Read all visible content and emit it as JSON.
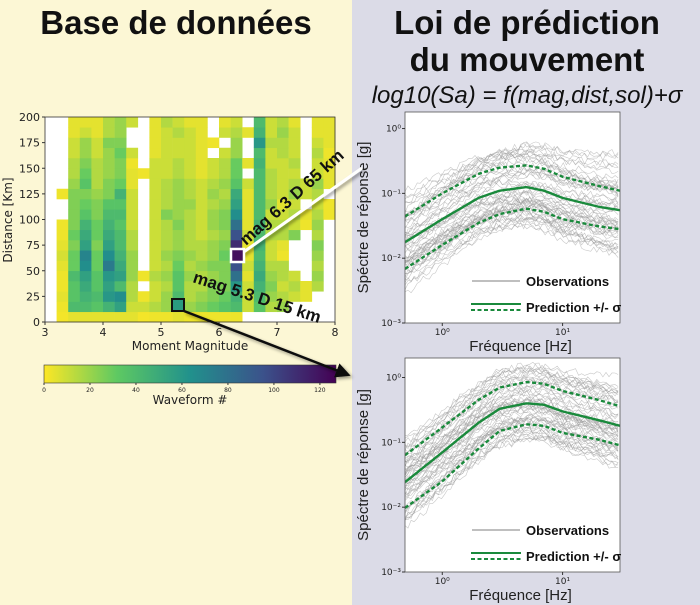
{
  "left_title": "Base de données",
  "right_title_line1": "Loi de prédiction",
  "right_title_line2": "du mouvement",
  "formula": "log10(Sa) = f(mag,dist,sol)+σ",
  "annotations": {
    "upper": "mag 6.3 D 65 km",
    "lower": "mag 5.3 D 15 km"
  },
  "colors": {
    "left_background": "#fcf7d5",
    "right_background": "#dbdbe7",
    "prediction": "#1a8a3c",
    "observations": "#9a9a9a",
    "upper_marker": "#ffffff",
    "lower_marker": "#111111"
  },
  "chart_data": [
    {
      "type": "heatmap",
      "xlabel": "Moment Magnitude",
      "ylabel": "Distance [Km]",
      "xlim": [
        3,
        8
      ],
      "ylim": [
        0,
        200
      ],
      "x_bin_width": 0.2,
      "y_bin_width": 10,
      "xticks": [
        "3",
        "4",
        "5",
        "6",
        "7",
        "8"
      ],
      "yticks": [
        "0",
        "25",
        "50",
        "75",
        "100",
        "125",
        "150",
        "175",
        "200"
      ],
      "colormap": "viridis_r",
      "colorbar": {
        "label": "Waveform #",
        "range": [
          0,
          127
        ],
        "ticks": [
          "0",
          "20",
          "40",
          "60",
          "80",
          "100",
          "120"
        ]
      },
      "rows_from_distance_0": [
        [
          null,
          2,
          5,
          5,
          5,
          5,
          5,
          5,
          2,
          3,
          3,
          5,
          3,
          3,
          3,
          3,
          3,
          null,
          null,
          null,
          null,
          null,
          null,
          null,
          null
        ],
        [
          null,
          3,
          40,
          40,
          35,
          45,
          55,
          10,
          10,
          15,
          20,
          45,
          20,
          25,
          30,
          35,
          40,
          10,
          35,
          15,
          20,
          null,
          null,
          null,
          null
        ],
        [
          null,
          5,
          35,
          45,
          40,
          60,
          65,
          15,
          3,
          10,
          20,
          40,
          15,
          20,
          25,
          30,
          45,
          10,
          40,
          20,
          15,
          10,
          5,
          null,
          null
        ],
        [
          null,
          3,
          35,
          50,
          35,
          55,
          40,
          15,
          null,
          10,
          15,
          35,
          15,
          15,
          25,
          25,
          60,
          10,
          45,
          25,
          10,
          15,
          5,
          15,
          null
        ],
        [
          null,
          3,
          40,
          55,
          35,
          60,
          55,
          20,
          3,
          15,
          20,
          35,
          20,
          15,
          20,
          25,
          80,
          5,
          50,
          20,
          15,
          10,
          null,
          20,
          null
        ],
        [
          null,
          5,
          30,
          65,
          30,
          75,
          50,
          20,
          null,
          10,
          15,
          30,
          15,
          20,
          25,
          25,
          95,
          10,
          45,
          15,
          15,
          null,
          null,
          15,
          null
        ],
        [
          null,
          8,
          30,
          70,
          30,
          65,
          45,
          20,
          null,
          10,
          20,
          25,
          20,
          15,
          20,
          30,
          125,
          5,
          40,
          10,
          3,
          null,
          null,
          20,
          null
        ],
        [
          null,
          5,
          25,
          55,
          25,
          55,
          40,
          15,
          null,
          10,
          15,
          20,
          15,
          15,
          20,
          25,
          110,
          5,
          45,
          10,
          5,
          null,
          null,
          25,
          null
        ],
        [
          null,
          3,
          30,
          50,
          30,
          50,
          40,
          15,
          null,
          10,
          15,
          20,
          15,
          10,
          15,
          20,
          95,
          10,
          40,
          15,
          15,
          25,
          null,
          15,
          null
        ],
        [
          null,
          3,
          25,
          45,
          30,
          45,
          35,
          10,
          null,
          10,
          15,
          25,
          15,
          10,
          20,
          25,
          80,
          5,
          45,
          15,
          15,
          10,
          3,
          20,
          null
        ],
        [
          null,
          null,
          25,
          35,
          25,
          40,
          40,
          10,
          null,
          10,
          25,
          20,
          15,
          10,
          20,
          25,
          65,
          5,
          40,
          10,
          10,
          15,
          5,
          15,
          3
        ],
        [
          null,
          null,
          25,
          30,
          25,
          35,
          35,
          10,
          null,
          10,
          15,
          20,
          20,
          10,
          15,
          20,
          55,
          5,
          40,
          20,
          5,
          10,
          null,
          10,
          3
        ],
        [
          null,
          3,
          25,
          25,
          20,
          25,
          45,
          10,
          null,
          10,
          15,
          20,
          15,
          10,
          20,
          15,
          50,
          5,
          40,
          15,
          10,
          20,
          10,
          15,
          null
        ],
        [
          null,
          null,
          20,
          35,
          15,
          25,
          30,
          5,
          null,
          10,
          15,
          20,
          15,
          10,
          15,
          20,
          35,
          10,
          40,
          15,
          10,
          15,
          10,
          20,
          5
        ],
        [
          null,
          null,
          15,
          30,
          15,
          20,
          25,
          5,
          3,
          10,
          10,
          15,
          10,
          5,
          10,
          15,
          30,
          null,
          40,
          15,
          10,
          10,
          null,
          10,
          5
        ],
        [
          null,
          null,
          15,
          25,
          15,
          20,
          25,
          3,
          null,
          10,
          10,
          15,
          10,
          5,
          10,
          15,
          30,
          5,
          45,
          10,
          10,
          15,
          null,
          10,
          5
        ],
        [
          null,
          null,
          10,
          20,
          10,
          20,
          30,
          10,
          null,
          5,
          10,
          10,
          10,
          5,
          null,
          10,
          20,
          null,
          40,
          10,
          15,
          10,
          null,
          15,
          3
        ],
        [
          null,
          null,
          10,
          20,
          10,
          25,
          25,
          null,
          null,
          5,
          10,
          10,
          10,
          5,
          3,
          null,
          20,
          null,
          60,
          15,
          15,
          10,
          null,
          10,
          5
        ],
        [
          null,
          null,
          5,
          10,
          5,
          15,
          20,
          null,
          null,
          5,
          10,
          15,
          10,
          5,
          null,
          10,
          15,
          5,
          45,
          10,
          20,
          10,
          null,
          5,
          5
        ],
        [
          null,
          null,
          5,
          5,
          5,
          15,
          20,
          10,
          null,
          5,
          15,
          10,
          5,
          5,
          null,
          5,
          10,
          null,
          40,
          10,
          15,
          5,
          null,
          5,
          5
        ]
      ],
      "highlighted_cells": [
        {
          "magnitude": 6.3,
          "distance": 65,
          "label": "mag 6.3 D 65 km"
        },
        {
          "magnitude": 5.3,
          "distance": 15,
          "label": "mag 5.3 D 15 km"
        }
      ]
    },
    {
      "type": "line",
      "scenario": "mag 6.3 D 65 km",
      "xlabel": "Fréquence [Hz]",
      "ylabel": "Spéctre de réponse [g]",
      "xscale": "log",
      "yscale": "log",
      "xlim": [
        0.49,
        30
      ],
      "ylim": [
        0.001,
        1.8
      ],
      "xticks": [
        "10⁰",
        "10¹"
      ],
      "yticks": [
        "10⁰",
        "10⁻¹",
        "10⁻²",
        "10⁻³"
      ],
      "legend": {
        "position": "bottom-right",
        "observations": "Observations",
        "prediction": "Prediction +/- σ"
      },
      "x": [
        0.5,
        1,
        2,
        3,
        5,
        7,
        10,
        20,
        30
      ],
      "series": [
        {
          "name": "Prediction",
          "style": "solid",
          "values": [
            0.018,
            0.04,
            0.085,
            0.11,
            0.125,
            0.11,
            0.085,
            0.062,
            0.055
          ]
        },
        {
          "style": "dashed",
          "values": [
            0.045,
            0.1,
            0.2,
            0.25,
            0.27,
            0.24,
            0.18,
            0.13,
            0.11
          ]
        },
        {
          "style": "dashed",
          "values": [
            0.007,
            0.016,
            0.035,
            0.048,
            0.058,
            0.052,
            0.04,
            0.031,
            0.028
          ]
        }
      ]
    },
    {
      "type": "line",
      "scenario": "mag 5.3 D 15 km",
      "xlabel": "Fréquence [Hz]",
      "ylabel": "Spéctre de réponse [g]",
      "xscale": "log",
      "yscale": "log",
      "xlim": [
        0.49,
        30
      ],
      "ylim": [
        0.001,
        2.0
      ],
      "xticks": [
        "10⁰",
        "10¹"
      ],
      "yticks": [
        "10⁰",
        "10⁻¹",
        "10⁻²",
        "10⁻³"
      ],
      "legend": {
        "position": "bottom-right",
        "observations": "Observations",
        "prediction": "Prediction +/- σ"
      },
      "x": [
        0.5,
        1,
        2,
        3,
        5,
        7,
        10,
        20,
        30
      ],
      "series": [
        {
          "name": "Prediction",
          "style": "solid",
          "values": [
            0.025,
            0.07,
            0.2,
            0.33,
            0.4,
            0.38,
            0.3,
            0.22,
            0.18
          ]
        },
        {
          "style": "dashed",
          "values": [
            0.065,
            0.17,
            0.45,
            0.7,
            0.85,
            0.8,
            0.62,
            0.45,
            0.36
          ]
        },
        {
          "style": "dashed",
          "values": [
            0.01,
            0.025,
            0.08,
            0.15,
            0.19,
            0.18,
            0.14,
            0.11,
            0.09
          ]
        }
      ]
    }
  ]
}
